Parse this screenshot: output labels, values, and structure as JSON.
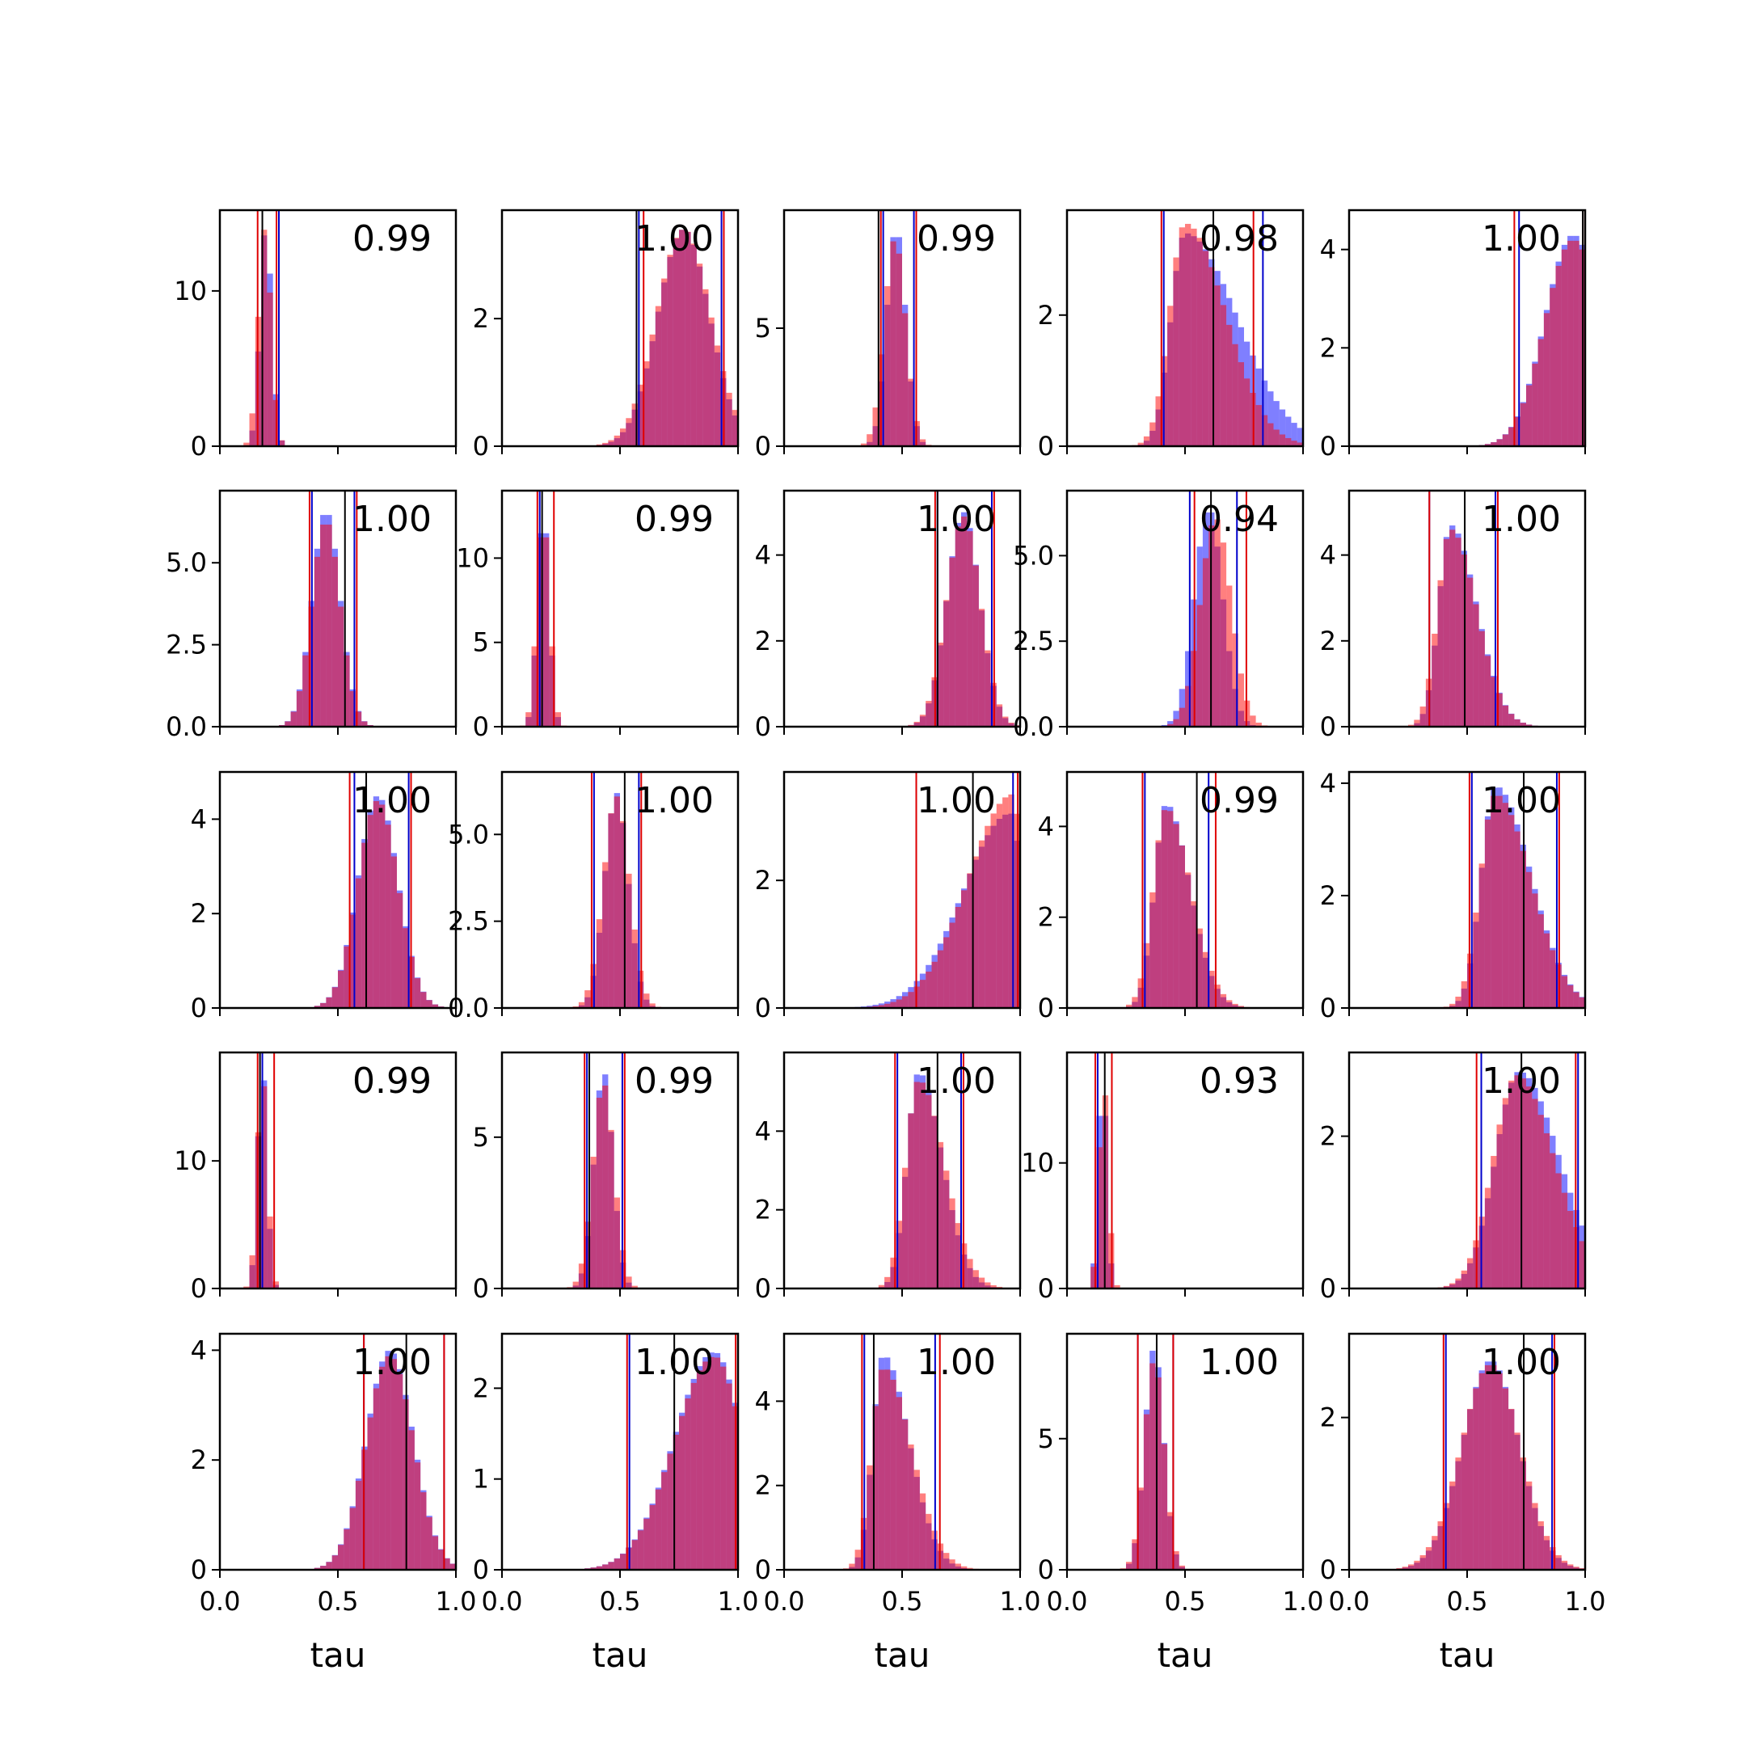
{
  "figure": {
    "grid_rows": 5,
    "grid_cols": 5,
    "shared_x_label": "tau",
    "colors": {
      "blue_hist": "#0000ff",
      "red_hist": "#ff0000",
      "blue_line": "#0000cc",
      "red_line": "#e00000",
      "truth_line": "#000000",
      "axes": "#000000"
    }
  },
  "chart_data": {
    "type": "histogram-grid",
    "xlabel": "tau",
    "xlim": [
      0,
      1
    ],
    "xticks": [
      0.0,
      0.5,
      1.0
    ],
    "xtick_labels": [
      "0.0",
      "0.5",
      "1.0"
    ],
    "panels": [
      {
        "label": "0.99",
        "yticks": [
          0,
          10
        ],
        "ytick_labels": [
          "0",
          "10"
        ],
        "ymax": 15.2,
        "dist": {
          "blue": {
            "shape": "normal",
            "mean": 0.195,
            "sd": 0.025,
            "peak": 14.2
          },
          "red": {
            "shape": "normal",
            "mean": 0.19,
            "sd": 0.027,
            "peak": 14.0
          }
        },
        "blue_lines": [
          0.25
        ],
        "red_lines": [
          0.16,
          0.24
        ],
        "truth": 0.18
      },
      {
        "label": "1.00",
        "yticks": [
          0,
          2
        ],
        "ytick_labels": [
          "0",
          "2"
        ],
        "ymax": 3.7,
        "dist": {
          "blue": {
            "shape": "normal",
            "mean": 0.77,
            "sd": 0.11,
            "peak": 3.4
          },
          "red": {
            "shape": "normal",
            "mean": 0.77,
            "sd": 0.115,
            "peak": 3.4
          }
        },
        "blue_lines": [
          0.58,
          0.93
        ],
        "red_lines": [
          0.6,
          0.94
        ],
        "truth": 0.57
      },
      {
        "label": "0.99",
        "yticks": [
          0,
          5
        ],
        "ytick_labels": [
          "0",
          "5"
        ],
        "ymax": 10.0,
        "dist": {
          "blue": {
            "shape": "normal",
            "mean": 0.475,
            "sd": 0.04,
            "peak": 9.3
          },
          "red": {
            "shape": "normal",
            "mean": 0.47,
            "sd": 0.045,
            "peak": 8.8
          }
        },
        "blue_lines": [
          0.42,
          0.55
        ],
        "red_lines": [
          0.41,
          0.56
        ],
        "truth": 0.4
      },
      {
        "label": "0.98",
        "yticks": [
          0,
          2
        ],
        "ytick_labels": [
          "0",
          "2"
        ],
        "ymax": 3.6,
        "dist": {
          "blue": {
            "shape": "skew",
            "mode": 0.5,
            "sd_left": 0.06,
            "sd_right": 0.22,
            "peak": 3.25
          },
          "red": {
            "shape": "skew",
            "mode": 0.5,
            "sd_left": 0.065,
            "sd_right": 0.17,
            "peak": 3.4
          }
        },
        "blue_lines": [
          0.41,
          0.83
        ],
        "red_lines": [
          0.4,
          0.79
        ],
        "truth": 0.62
      },
      {
        "label": "1.00",
        "yticks": [
          0,
          2,
          4
        ],
        "ytick_labels": [
          "0",
          "2",
          "4"
        ],
        "ymax": 4.8,
        "dist": {
          "blue": {
            "shape": "normal",
            "mean": 0.95,
            "sd": 0.12,
            "peak": 4.3
          },
          "red": {
            "shape": "normal",
            "mean": 0.95,
            "sd": 0.12,
            "peak": 4.2
          }
        },
        "blue_lines": [
          0.72,
          1.0
        ],
        "red_lines": [
          0.7,
          0.99
        ],
        "truth": 0.99
      },
      {
        "label": "1.00",
        "yticks": [
          0,
          2.5,
          5
        ],
        "ytick_labels": [
          "0.0",
          "2.5",
          "5.0"
        ],
        "ymax": 7.2,
        "dist": {
          "blue": {
            "shape": "normal",
            "mean": 0.45,
            "sd": 0.06,
            "peak": 6.6
          },
          "red": {
            "shape": "normal",
            "mean": 0.45,
            "sd": 0.06,
            "peak": 6.3
          }
        },
        "blue_lines": [
          0.39,
          0.57
        ],
        "red_lines": [
          0.38,
          0.58
        ],
        "truth": 0.53
      },
      {
        "label": "0.99",
        "yticks": [
          0,
          5,
          10
        ],
        "ytick_labels": [
          "0",
          "5",
          "10"
        ],
        "ymax": 14.0,
        "dist": {
          "blue": {
            "shape": "normal",
            "mean": 0.175,
            "sd": 0.025,
            "peak": 13.0
          },
          "red": {
            "shape": "normal",
            "mean": 0.175,
            "sd": 0.027,
            "peak": 12.5
          }
        },
        "blue_lines": [
          0.16
        ],
        "red_lines": [
          0.15,
          0.22
        ],
        "truth": 0.17
      },
      {
        "label": "1.00",
        "yticks": [
          0,
          2,
          4
        ],
        "ytick_labels": [
          "0",
          "2",
          "4"
        ],
        "ymax": 5.5,
        "dist": {
          "blue": {
            "shape": "normal",
            "mean": 0.76,
            "sd": 0.07,
            "peak": 5.0
          },
          "red": {
            "shape": "normal",
            "mean": 0.76,
            "sd": 0.072,
            "peak": 4.9
          }
        },
        "blue_lines": [
          0.65,
          0.88
        ],
        "red_lines": [
          0.64,
          0.89
        ],
        "truth": 0.65
      },
      {
        "label": "0.94",
        "yticks": [
          0,
          2.5,
          5
        ],
        "ytick_labels": [
          "0.0",
          "2.5",
          "5.0"
        ],
        "ymax": 6.9,
        "dist": {
          "blue": {
            "shape": "normal",
            "mean": 0.6,
            "sd": 0.06,
            "peak": 6.4
          },
          "red": {
            "shape": "normal",
            "mean": 0.63,
            "sd": 0.065,
            "peak": 6.1
          }
        },
        "blue_lines": [
          0.52,
          0.72
        ],
        "red_lines": [
          0.54,
          0.76
        ],
        "truth": 0.61
      },
      {
        "label": "1.00",
        "yticks": [
          0,
          2,
          4
        ],
        "ytick_labels": [
          "0",
          "2",
          "4"
        ],
        "ymax": 5.5,
        "dist": {
          "blue": {
            "shape": "skew",
            "mode": 0.43,
            "sd_left": 0.05,
            "sd_right": 0.11,
            "peak": 4.7
          },
          "red": {
            "shape": "skew",
            "mode": 0.43,
            "sd_left": 0.055,
            "sd_right": 0.11,
            "peak": 4.6
          }
        },
        "blue_lines": [
          0.34,
          0.62
        ],
        "red_lines": [
          0.34,
          0.63
        ],
        "truth": 0.49
      },
      {
        "label": "1.00",
        "yticks": [
          0,
          2,
          4
        ],
        "ytick_labels": [
          "0",
          "2",
          "4"
        ],
        "ymax": 5.0,
        "dist": {
          "blue": {
            "shape": "normal",
            "mean": 0.67,
            "sd": 0.085,
            "peak": 4.5
          },
          "red": {
            "shape": "normal",
            "mean": 0.67,
            "sd": 0.085,
            "peak": 4.4
          }
        },
        "blue_lines": [
          0.57,
          0.8
        ],
        "red_lines": [
          0.55,
          0.81
        ],
        "truth": 0.62
      },
      {
        "label": "1.00",
        "yticks": [
          0,
          2.5,
          5
        ],
        "ytick_labels": [
          "0.0",
          "2.5",
          "5.0"
        ],
        "ymax": 6.8,
        "dist": {
          "blue": {
            "shape": "normal",
            "mean": 0.485,
            "sd": 0.05,
            "peak": 6.2
          },
          "red": {
            "shape": "normal",
            "mean": 0.485,
            "sd": 0.055,
            "peak": 6.1
          }
        },
        "blue_lines": [
          0.39,
          0.58
        ],
        "red_lines": [
          0.38,
          0.59
        ],
        "truth": 0.52
      },
      {
        "label": "1.00",
        "yticks": [
          0,
          2
        ],
        "ytick_labels": [
          "0",
          "2"
        ],
        "ymax": 3.7,
        "dist": {
          "blue": {
            "shape": "skew",
            "mode": 0.96,
            "sd_left": 0.2,
            "sd_right": 0.05,
            "peak": 3.05
          },
          "red": {
            "shape": "skew",
            "mode": 0.97,
            "sd_left": 0.19,
            "sd_right": 0.04,
            "peak": 3.35
          }
        },
        "blue_lines": [
          0.56,
          0.97
        ],
        "red_lines": [
          0.56,
          0.99
        ],
        "truth": 0.8
      },
      {
        "label": "0.99",
        "yticks": [
          0,
          2,
          4
        ],
        "ytick_labels": [
          "0",
          "2",
          "4"
        ],
        "ymax": 5.2,
        "dist": {
          "blue": {
            "shape": "skew",
            "mode": 0.42,
            "sd_left": 0.05,
            "sd_right": 0.1,
            "peak": 4.5
          },
          "red": {
            "shape": "skew",
            "mode": 0.42,
            "sd_left": 0.055,
            "sd_right": 0.105,
            "peak": 4.4
          }
        },
        "blue_lines": [
          0.33,
          0.6
        ],
        "red_lines": [
          0.32,
          0.63
        ],
        "truth": 0.55
      },
      {
        "label": "1.00",
        "yticks": [
          0,
          2,
          4
        ],
        "ytick_labels": [
          "0",
          "2",
          "4"
        ],
        "ymax": 4.2,
        "dist": {
          "blue": {
            "shape": "skew",
            "mode": 0.62,
            "sd_left": 0.06,
            "sd_right": 0.15,
            "peak": 3.95
          },
          "red": {
            "shape": "skew",
            "mode": 0.62,
            "sd_left": 0.065,
            "sd_right": 0.15,
            "peak": 3.8
          }
        },
        "blue_lines": [
          0.52,
          0.88
        ],
        "red_lines": [
          0.51,
          0.89
        ],
        "truth": 0.74
      },
      {
        "label": "0.99",
        "yticks": [
          0,
          10
        ],
        "ytick_labels": [
          "0",
          "10"
        ],
        "ymax": 18.5,
        "dist": {
          "blue": {
            "shape": "normal",
            "mean": 0.18,
            "sd": 0.02,
            "peak": 17.5
          },
          "red": {
            "shape": "normal",
            "mean": 0.18,
            "sd": 0.022,
            "peak": 16.8
          }
        },
        "blue_lines": [
          0.18
        ],
        "red_lines": [
          0.16,
          0.23
        ],
        "truth": 0.17
      },
      {
        "label": "0.99",
        "yticks": [
          0,
          5
        ],
        "ytick_labels": [
          "0",
          "5"
        ],
        "ymax": 7.8,
        "dist": {
          "blue": {
            "shape": "normal",
            "mean": 0.43,
            "sd": 0.04,
            "peak": 7.2
          },
          "red": {
            "shape": "normal",
            "mean": 0.43,
            "sd": 0.045,
            "peak": 6.8
          }
        },
        "blue_lines": [
          0.36,
          0.51
        ],
        "red_lines": [
          0.35,
          0.52
        ],
        "truth": 0.37
      },
      {
        "label": "1.00",
        "yticks": [
          0,
          2,
          4
        ],
        "ytick_labels": [
          "0",
          "2",
          "4"
        ],
        "ymax": 6.0,
        "dist": {
          "blue": {
            "shape": "skew",
            "mode": 0.57,
            "sd_left": 0.05,
            "sd_right": 0.1,
            "peak": 5.5
          },
          "red": {
            "shape": "skew",
            "mode": 0.57,
            "sd_left": 0.055,
            "sd_right": 0.11,
            "peak": 5.3
          }
        },
        "blue_lines": [
          0.48,
          0.75
        ],
        "red_lines": [
          0.47,
          0.76
        ],
        "truth": 0.65
      },
      {
        "label": "0.93",
        "yticks": [
          0,
          10
        ],
        "ytick_labels": [
          "0",
          "10"
        ],
        "ymax": 18.8,
        "dist": {
          "blue": {
            "shape": "normal",
            "mean": 0.15,
            "sd": 0.018,
            "peak": 17.5
          },
          "red": {
            "shape": "normal",
            "mean": 0.155,
            "sd": 0.02,
            "peak": 16.5
          }
        },
        "blue_lines": [
          0.13
        ],
        "red_lines": [
          0.12,
          0.19
        ],
        "truth": 0.16
      },
      {
        "label": "1.00",
        "yticks": [
          0,
          2
        ],
        "ytick_labels": [
          "0",
          "2"
        ],
        "ymax": 3.1,
        "dist": {
          "blue": {
            "shape": "skew",
            "mode": 0.72,
            "sd_left": 0.1,
            "sd_right": 0.17,
            "peak": 2.85
          },
          "red": {
            "shape": "skew",
            "mode": 0.71,
            "sd_left": 0.1,
            "sd_right": 0.16,
            "peak": 2.8
          }
        },
        "blue_lines": [
          0.56,
          0.97
        ],
        "red_lines": [
          0.54,
          0.96
        ],
        "truth": 0.73
      },
      {
        "label": "1.00",
        "yticks": [
          0,
          2,
          4
        ],
        "ytick_labels": [
          "0",
          "2",
          "4"
        ],
        "ymax": 4.3,
        "dist": {
          "blue": {
            "shape": "normal",
            "mean": 0.72,
            "sd": 0.1,
            "peak": 4.0
          },
          "red": {
            "shape": "normal",
            "mean": 0.72,
            "sd": 0.1,
            "peak": 3.9
          }
        },
        "blue_lines": [
          0.61,
          0.95
        ],
        "red_lines": [
          0.61,
          0.95
        ],
        "truth": 0.79
      },
      {
        "label": "1.00",
        "yticks": [
          0,
          1,
          2
        ],
        "ytick_labels": [
          "0",
          "1",
          "2"
        ],
        "ymax": 2.6,
        "dist": {
          "blue": {
            "shape": "skew",
            "mode": 0.9,
            "sd_left": 0.17,
            "sd_right": 0.12,
            "peak": 2.4
          },
          "red": {
            "shape": "skew",
            "mode": 0.9,
            "sd_left": 0.17,
            "sd_right": 0.12,
            "peak": 2.35
          }
        },
        "blue_lines": [
          0.54,
          1.0
        ],
        "red_lines": [
          0.53,
          0.99
        ],
        "truth": 0.73
      },
      {
        "label": "1.00",
        "yticks": [
          0,
          2,
          4
        ],
        "ytick_labels": [
          "0",
          "2",
          "4"
        ],
        "ymax": 5.6,
        "dist": {
          "blue": {
            "shape": "skew",
            "mode": 0.42,
            "sd_left": 0.045,
            "sd_right": 0.11,
            "peak": 5.1
          },
          "red": {
            "shape": "skew",
            "mode": 0.42,
            "sd_left": 0.05,
            "sd_right": 0.12,
            "peak": 4.8
          }
        },
        "blue_lines": [
          0.34,
          0.64
        ],
        "red_lines": [
          0.33,
          0.66
        ],
        "truth": 0.38
      },
      {
        "label": "1.00",
        "yticks": [
          0,
          5
        ],
        "ytick_labels": [
          "0",
          "5"
        ],
        "ymax": 9.0,
        "dist": {
          "blue": {
            "shape": "normal",
            "mean": 0.37,
            "sd": 0.04,
            "peak": 8.5
          },
          "red": {
            "shape": "normal",
            "mean": 0.37,
            "sd": 0.042,
            "peak": 8.0
          }
        },
        "blue_lines": [
          0.3,
          0.45
        ],
        "red_lines": [
          0.3,
          0.45
        ],
        "truth": 0.38
      },
      {
        "label": "1.00",
        "yticks": [
          0,
          2
        ],
        "ytick_labels": [
          "0",
          "2"
        ],
        "ymax": 3.1,
        "dist": {
          "blue": {
            "shape": "normal",
            "mean": 0.6,
            "sd": 0.12,
            "peak": 2.75
          },
          "red": {
            "shape": "normal",
            "mean": 0.6,
            "sd": 0.125,
            "peak": 2.7
          }
        },
        "blue_lines": [
          0.41,
          0.86
        ],
        "red_lines": [
          0.4,
          0.87
        ],
        "truth": 0.74
      }
    ]
  }
}
